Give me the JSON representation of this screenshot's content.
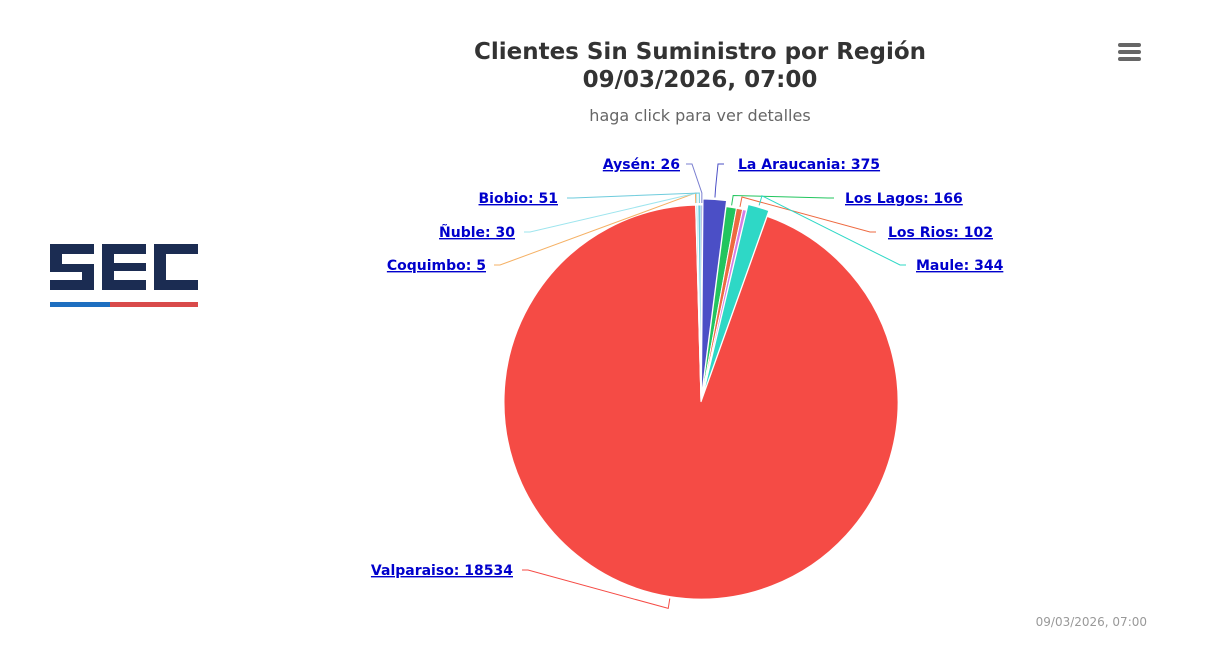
{
  "chart_data": {
    "type": "pie",
    "title": "Clientes Sin Suministro por Región",
    "title_datetime": "09/03/2026, 07:00",
    "subtitle": "haga click para ver detalles",
    "timestamp": "09/03/2026, 07:00",
    "slices": [
      {
        "name": "Aysén",
        "value": 26,
        "color": "#7a7fd0",
        "label": "Aysén: 26"
      },
      {
        "name": "La Araucania",
        "value": 375,
        "color": "#4b4fc6",
        "label": "La Araucania: 375"
      },
      {
        "name": "Los Lagos",
        "value": 166,
        "color": "#22c55e",
        "label": "Los Lagos: 166"
      },
      {
        "name": "Los Rios",
        "value": 102,
        "color": "#ee6a41",
        "label": "Los Rios: 102"
      },
      {
        "name": "",
        "value": 60,
        "color": "#d37ee6",
        "label": ""
      },
      {
        "name": "Maule",
        "value": 344,
        "color": "#2ed8c6",
        "label": "Maule: 344"
      },
      {
        "name": "Valparaiso",
        "value": 18534,
        "color": "#f54b45",
        "label": "Valparaiso: 18534"
      },
      {
        "name": "Coquimbo",
        "value": 5,
        "color": "#f5b165",
        "label": "Coquimbo: 5"
      },
      {
        "name": "Ñuble",
        "value": 30,
        "color": "#9ee5ee",
        "label": "Ñuble: 30"
      },
      {
        "name": "Biobio",
        "value": 51,
        "color": "#6dcbdc",
        "label": "Biobio: 51"
      }
    ]
  },
  "logo": {
    "text": "SEC",
    "brand_color": "#1b2c52",
    "accent_blue": "#1e6fc0",
    "accent_red": "#d94a4a"
  },
  "menu": {
    "icon": "hamburger-menu-icon"
  }
}
